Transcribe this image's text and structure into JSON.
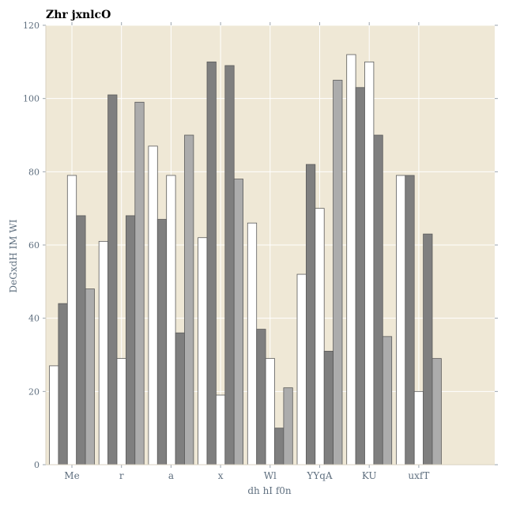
{
  "chart_data": {
    "type": "bar",
    "title": "Zhr jxnlcO",
    "xlabel": "dh hI f0n",
    "ylabel": "DeGxdH IM WI",
    "ylim": [
      0,
      120
    ],
    "yticks": [
      "0",
      "20",
      "40",
      "60",
      "80",
      "100",
      "120"
    ],
    "categories": [
      "Me",
      "r",
      "a",
      "x",
      "Wl",
      "YYqA",
      "KU",
      "uxfT"
    ],
    "grid": true,
    "series": [
      {
        "values": [
          27,
          61,
          87,
          62,
          66,
          52,
          112,
          79
        ],
        "color": "#ffffff"
      },
      {
        "values": [
          44,
          101,
          67,
          110,
          37,
          82,
          103,
          79
        ],
        "color": "#7f7f7f"
      },
      {
        "values": [
          79,
          29,
          79,
          19,
          29,
          70,
          110,
          20
        ],
        "color": "#ffffff"
      },
      {
        "values": [
          68,
          68,
          36,
          109,
          10,
          31,
          90,
          63
        ],
        "color": "#7f7f7f"
      },
      {
        "values": [
          48,
          99,
          90,
          78,
          21,
          105,
          35,
          29
        ],
        "color": "#acacac"
      }
    ],
    "colors": {
      "plot_background": "#efe8d6",
      "grid": "#ffffff",
      "bar_edge": "#5a5a5a",
      "axis_text": "#5f6f7f"
    }
  }
}
